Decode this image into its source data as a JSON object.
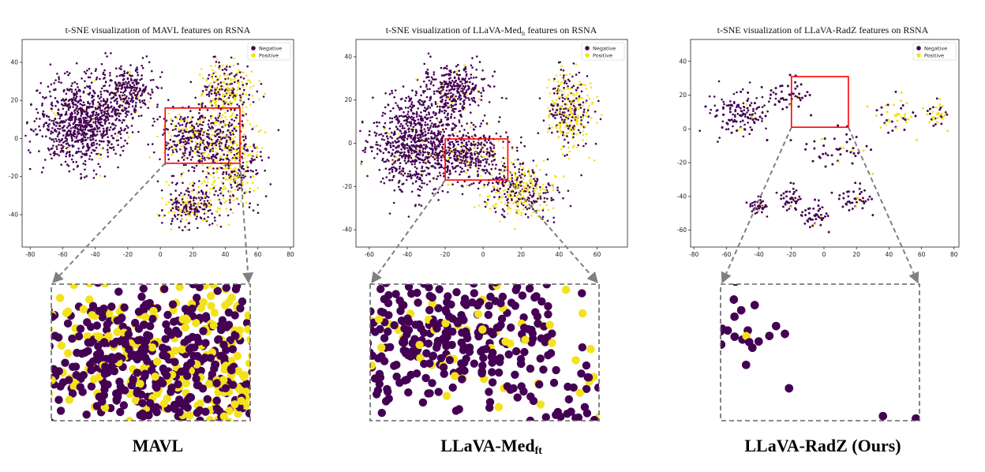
{
  "colors": {
    "negative": "#440154",
    "positive": "#f3e21a",
    "highlight_box": "#ff0000",
    "connector": "#808080"
  },
  "chart_data": [
    {
      "type": "scatter",
      "title": "t-SNE visualization of MAVL features on RSNA",
      "caption": "MAVL",
      "legend": {
        "entries": [
          "Negative",
          "Positive"
        ],
        "placement": "top-right"
      },
      "xlim": [
        -85,
        82
      ],
      "ylim": [
        -57,
        52
      ],
      "xticks": [
        -80,
        -60,
        -40,
        -20,
        0,
        20,
        40,
        60,
        80
      ],
      "yticks": [
        -40,
        -20,
        0,
        20,
        40
      ],
      "zoom_box": {
        "x": [
          3,
          49
        ],
        "y": [
          -13,
          16
        ]
      }
    },
    {
      "type": "scatter",
      "title": "t-SNE visualization of LLaVA-Med",
      "title_sub": "ft",
      "title_suffix": " features on RSNA",
      "caption": "LLaVA-Med",
      "caption_sub": "ft",
      "legend": {
        "entries": [
          "Negative",
          "Positive"
        ],
        "placement": "top-right"
      },
      "xlim": [
        -67,
        76
      ],
      "ylim": [
        -48,
        48
      ],
      "xticks": [
        -60,
        -40,
        -20,
        0,
        20,
        40,
        60
      ],
      "yticks": [
        -40,
        -20,
        0,
        20,
        40
      ],
      "zoom_box": {
        "x": [
          -20,
          13
        ],
        "y": [
          -17,
          2
        ]
      }
    },
    {
      "type": "scatter",
      "title": "t-SNE visualization of LLaVA-RadZ features on RSNA",
      "caption": "LLaVA-RadZ (Ours)",
      "legend": {
        "entries": [
          "Negative",
          "Positive"
        ],
        "placement": "top-right"
      },
      "xlim": [
        -82,
        83
      ],
      "ylim": [
        -70,
        53
      ],
      "xticks": [
        -80,
        -60,
        -40,
        -20,
        0,
        20,
        40,
        60,
        80
      ],
      "yticks": [
        -60,
        -40,
        -20,
        0,
        20,
        40
      ],
      "zoom_box": {
        "x": [
          -20,
          15
        ],
        "y": [
          1,
          31
        ]
      }
    }
  ]
}
